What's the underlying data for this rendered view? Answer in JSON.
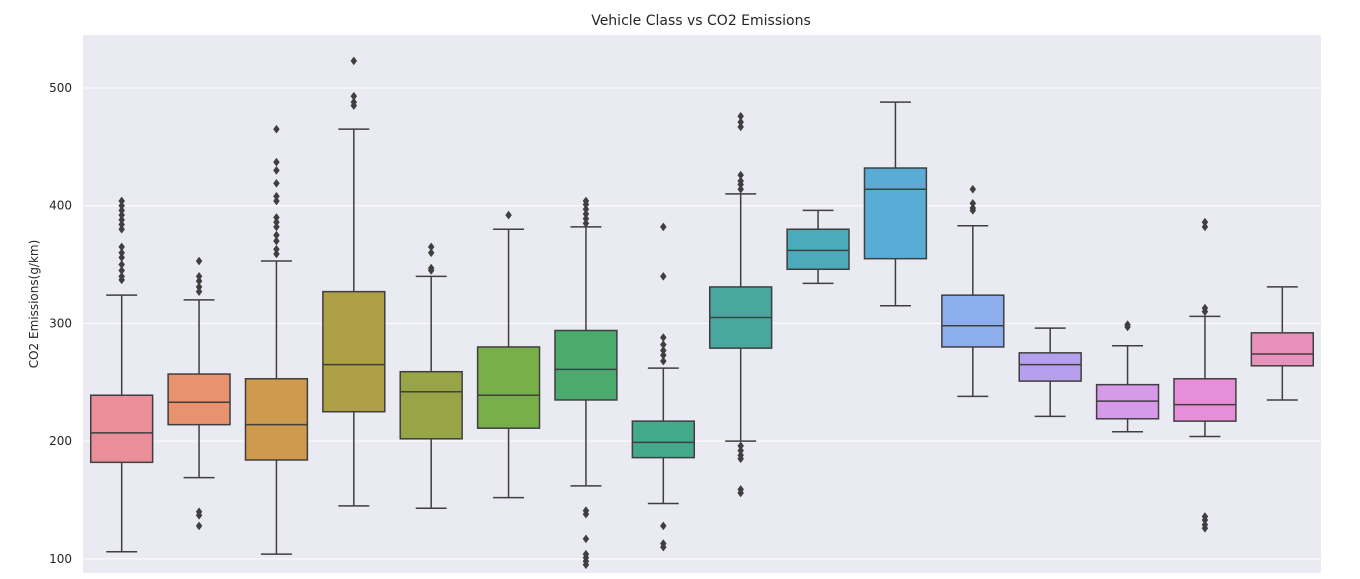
{
  "chart_data": {
    "type": "box",
    "title": "Vehicle Class vs CO2 Emissions",
    "xlabel": "",
    "ylabel": "CO2 Emissions(g/km)",
    "ylim": [
      88,
      545
    ],
    "yticks": [
      100,
      200,
      300,
      400,
      500
    ],
    "grid": true,
    "background": "#EAEAF2",
    "line_color": "#3F3F3F",
    "boxes": [
      {
        "color": "#EA8F99",
        "whisker_low": 106,
        "q1": 182,
        "median": 207,
        "q3": 239,
        "whisker_high": 324,
        "outliers": [
          337,
          340,
          345,
          350,
          356,
          360,
          365,
          380,
          384,
          388,
          392,
          396,
          400,
          404
        ]
      },
      {
        "color": "#E89270",
        "whisker_low": 169,
        "q1": 214,
        "median": 233,
        "q3": 257,
        "whisker_high": 320,
        "outliers": [
          128,
          137,
          140,
          327,
          331,
          336,
          340,
          353
        ]
      },
      {
        "color": "#CE9A4E",
        "whisker_low": 104,
        "q1": 184,
        "median": 214,
        "q3": 253,
        "whisker_high": 353,
        "outliers": [
          359,
          363,
          370,
          375,
          382,
          386,
          390,
          404,
          408,
          419,
          430,
          437,
          465
        ]
      },
      {
        "color": "#ADA046",
        "whisker_low": 145,
        "q1": 225,
        "median": 265,
        "q3": 327,
        "whisker_high": 465,
        "outliers": [
          485,
          488,
          493,
          523
        ]
      },
      {
        "color": "#98A546",
        "whisker_low": 143,
        "q1": 202,
        "median": 242,
        "q3": 259,
        "whisker_high": 340,
        "outliers": [
          345,
          347,
          360,
          365
        ]
      },
      {
        "color": "#78AF48",
        "whisker_low": 152,
        "q1": 211,
        "median": 239,
        "q3": 280,
        "whisker_high": 380,
        "outliers": [
          392
        ]
      },
      {
        "color": "#4BAA6E",
        "whisker_low": 162,
        "q1": 235,
        "median": 261,
        "q3": 294,
        "whisker_high": 382,
        "outliers": [
          95,
          98,
          101,
          104,
          117,
          138,
          141,
          385,
          389,
          393,
          397,
          401,
          404
        ]
      },
      {
        "color": "#45A98C",
        "whisker_low": 147,
        "q1": 186,
        "median": 199,
        "q3": 217,
        "whisker_high": 262,
        "outliers": [
          110,
          113,
          128,
          268,
          273,
          277,
          282,
          288,
          340,
          382
        ]
      },
      {
        "color": "#48A8A0",
        "whisker_low": 200,
        "q1": 279,
        "median": 305,
        "q3": 331,
        "whisker_high": 410,
        "outliers": [
          156,
          159,
          185,
          188,
          192,
          196,
          414,
          418,
          421,
          426,
          467,
          471,
          476
        ]
      },
      {
        "color": "#4CABBA",
        "whisker_low": 334,
        "q1": 346,
        "median": 362,
        "q3": 380,
        "whisker_high": 396,
        "outliers": []
      },
      {
        "color": "#59ACD6",
        "whisker_low": 315,
        "q1": 355,
        "median": 414,
        "q3": 432,
        "whisker_high": 488,
        "outliers": []
      },
      {
        "color": "#8DAEEC",
        "whisker_low": 238,
        "q1": 280,
        "median": 298,
        "q3": 324,
        "whisker_high": 383,
        "outliers": [
          396,
          398,
          402,
          414
        ]
      },
      {
        "color": "#B69FEC",
        "whisker_low": 221,
        "q1": 251,
        "median": 265,
        "q3": 275,
        "whisker_high": 296,
        "outliers": []
      },
      {
        "color": "#D59AE8",
        "whisker_low": 208,
        "q1": 219,
        "median": 234,
        "q3": 248,
        "whisker_high": 281,
        "outliers": [
          297,
          299
        ]
      },
      {
        "color": "#E78ED8",
        "whisker_low": 204,
        "q1": 217,
        "median": 231,
        "q3": 253,
        "whisker_high": 306,
        "outliers": [
          126,
          129,
          133,
          136,
          310,
          313,
          382,
          386
        ]
      },
      {
        "color": "#E891BA",
        "whisker_low": 235,
        "q1": 264,
        "median": 274,
        "q3": 292,
        "whisker_high": 331,
        "outliers": []
      }
    ]
  }
}
